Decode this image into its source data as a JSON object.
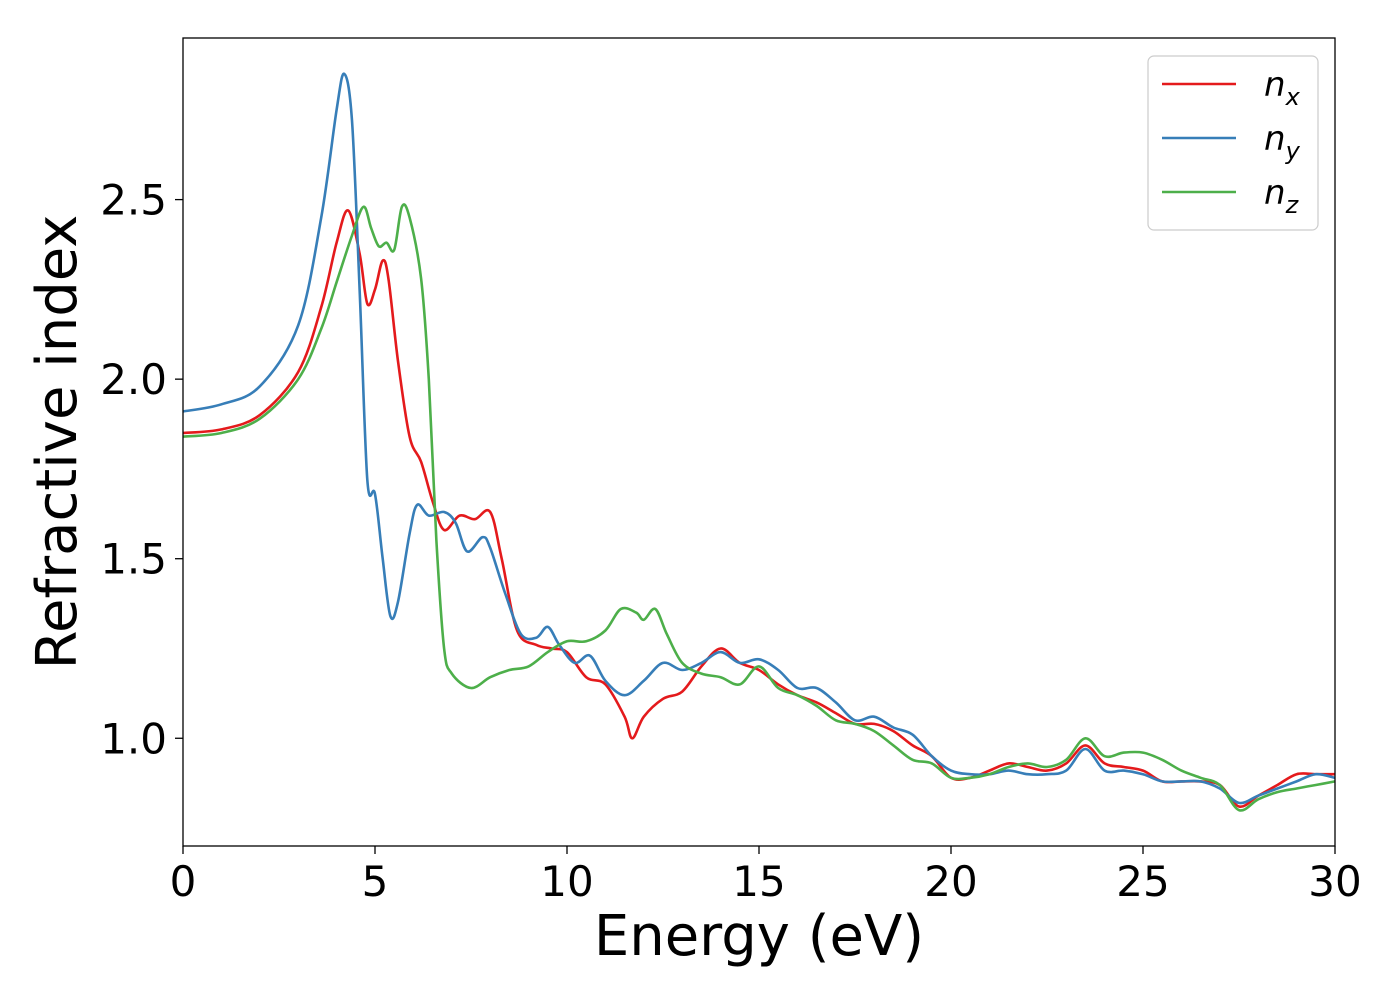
{
  "chart_data": {
    "type": "line",
    "title": "",
    "xlabel": "Energy (eV)",
    "ylabel": "Refractive index",
    "xlim": [
      0,
      30
    ],
    "ylim": [
      0.7,
      2.95
    ],
    "xticks": [
      0,
      5,
      10,
      15,
      20,
      25,
      30
    ],
    "xtick_labels": [
      "0",
      "5",
      "10",
      "15",
      "20",
      "25",
      "30"
    ],
    "yticks": [
      1.0,
      1.5,
      2.0,
      2.5
    ],
    "ytick_labels": [
      "1.0",
      "1.5",
      "2.0",
      "2.5"
    ],
    "grid": false,
    "legend_position": "top-right",
    "series": [
      {
        "name": "n",
        "subscript": "x",
        "color": "#e41a1c",
        "points": [
          [
            0,
            1.85
          ],
          [
            1,
            1.86
          ],
          [
            2,
            1.9
          ],
          [
            3,
            2.02
          ],
          [
            3.6,
            2.2
          ],
          [
            4,
            2.38
          ],
          [
            4.3,
            2.47
          ],
          [
            4.6,
            2.35
          ],
          [
            4.8,
            2.21
          ],
          [
            5,
            2.25
          ],
          [
            5.2,
            2.33
          ],
          [
            5.35,
            2.28
          ],
          [
            5.6,
            2.05
          ],
          [
            5.9,
            1.84
          ],
          [
            6.2,
            1.77
          ],
          [
            6.5,
            1.66
          ],
          [
            6.8,
            1.58
          ],
          [
            7.2,
            1.62
          ],
          [
            7.6,
            1.61
          ],
          [
            8,
            1.63
          ],
          [
            8.3,
            1.5
          ],
          [
            8.7,
            1.3
          ],
          [
            9.2,
            1.26
          ],
          [
            9.6,
            1.25
          ],
          [
            10,
            1.24
          ],
          [
            10.5,
            1.17
          ],
          [
            11,
            1.15
          ],
          [
            11.5,
            1.06
          ],
          [
            11.7,
            1.0
          ],
          [
            12,
            1.06
          ],
          [
            12.5,
            1.11
          ],
          [
            13,
            1.13
          ],
          [
            13.5,
            1.2
          ],
          [
            14,
            1.25
          ],
          [
            14.5,
            1.21
          ],
          [
            15,
            1.19
          ],
          [
            15.5,
            1.15
          ],
          [
            16,
            1.12
          ],
          [
            16.5,
            1.1
          ],
          [
            17,
            1.07
          ],
          [
            17.5,
            1.04
          ],
          [
            18,
            1.04
          ],
          [
            18.5,
            1.02
          ],
          [
            19,
            0.98
          ],
          [
            19.5,
            0.95
          ],
          [
            20,
            0.89
          ],
          [
            20.5,
            0.89
          ],
          [
            21,
            0.91
          ],
          [
            21.5,
            0.93
          ],
          [
            22,
            0.92
          ],
          [
            22.5,
            0.91
          ],
          [
            23,
            0.93
          ],
          [
            23.5,
            0.98
          ],
          [
            24,
            0.93
          ],
          [
            24.5,
            0.92
          ],
          [
            25,
            0.91
          ],
          [
            25.5,
            0.88
          ],
          [
            26,
            0.88
          ],
          [
            26.5,
            0.88
          ],
          [
            27,
            0.87
          ],
          [
            27.5,
            0.81
          ],
          [
            28,
            0.84
          ],
          [
            28.5,
            0.87
          ],
          [
            29,
            0.9
          ],
          [
            29.5,
            0.9
          ],
          [
            30,
            0.9
          ]
        ]
      },
      {
        "name": "n",
        "subscript": "y",
        "color": "#377eb8",
        "points": [
          [
            0,
            1.91
          ],
          [
            1,
            1.93
          ],
          [
            2,
            1.98
          ],
          [
            3,
            2.15
          ],
          [
            3.6,
            2.45
          ],
          [
            4,
            2.75
          ],
          [
            4.2,
            2.85
          ],
          [
            4.4,
            2.72
          ],
          [
            4.6,
            2.25
          ],
          [
            4.8,
            1.72
          ],
          [
            5,
            1.68
          ],
          [
            5.2,
            1.5
          ],
          [
            5.4,
            1.34
          ],
          [
            5.6,
            1.38
          ],
          [
            5.9,
            1.57
          ],
          [
            6.1,
            1.65
          ],
          [
            6.4,
            1.62
          ],
          [
            6.8,
            1.63
          ],
          [
            7.1,
            1.6
          ],
          [
            7.4,
            1.52
          ],
          [
            7.8,
            1.56
          ],
          [
            8,
            1.53
          ],
          [
            8.4,
            1.4
          ],
          [
            8.8,
            1.29
          ],
          [
            9.2,
            1.28
          ],
          [
            9.5,
            1.31
          ],
          [
            9.8,
            1.26
          ],
          [
            10.2,
            1.21
          ],
          [
            10.6,
            1.23
          ],
          [
            11,
            1.16
          ],
          [
            11.5,
            1.12
          ],
          [
            12,
            1.16
          ],
          [
            12.5,
            1.21
          ],
          [
            13,
            1.19
          ],
          [
            13.5,
            1.21
          ],
          [
            14,
            1.24
          ],
          [
            14.5,
            1.21
          ],
          [
            15,
            1.22
          ],
          [
            15.5,
            1.19
          ],
          [
            16,
            1.14
          ],
          [
            16.5,
            1.14
          ],
          [
            17,
            1.1
          ],
          [
            17.5,
            1.05
          ],
          [
            18,
            1.06
          ],
          [
            18.5,
            1.03
          ],
          [
            19,
            1.01
          ],
          [
            19.5,
            0.95
          ],
          [
            20,
            0.91
          ],
          [
            20.5,
            0.9
          ],
          [
            21,
            0.9
          ],
          [
            21.5,
            0.91
          ],
          [
            22,
            0.9
          ],
          [
            22.5,
            0.9
          ],
          [
            23,
            0.91
          ],
          [
            23.5,
            0.97
          ],
          [
            24,
            0.91
          ],
          [
            24.5,
            0.91
          ],
          [
            25,
            0.9
          ],
          [
            25.5,
            0.88
          ],
          [
            26,
            0.88
          ],
          [
            26.5,
            0.88
          ],
          [
            27,
            0.86
          ],
          [
            27.5,
            0.82
          ],
          [
            28,
            0.84
          ],
          [
            28.5,
            0.86
          ],
          [
            29,
            0.88
          ],
          [
            29.5,
            0.9
          ],
          [
            30,
            0.89
          ]
        ]
      },
      {
        "name": "n",
        "subscript": "z",
        "color": "#4daf4a",
        "points": [
          [
            0,
            1.84
          ],
          [
            1,
            1.85
          ],
          [
            2,
            1.89
          ],
          [
            3,
            2.0
          ],
          [
            3.6,
            2.14
          ],
          [
            4,
            2.27
          ],
          [
            4.4,
            2.4
          ],
          [
            4.7,
            2.48
          ],
          [
            4.9,
            2.42
          ],
          [
            5.1,
            2.37
          ],
          [
            5.3,
            2.38
          ],
          [
            5.5,
            2.36
          ],
          [
            5.7,
            2.48
          ],
          [
            5.9,
            2.45
          ],
          [
            6.2,
            2.28
          ],
          [
            6.4,
            2.0
          ],
          [
            6.6,
            1.55
          ],
          [
            6.8,
            1.25
          ],
          [
            7,
            1.18
          ],
          [
            7.5,
            1.14
          ],
          [
            8,
            1.17
          ],
          [
            8.5,
            1.19
          ],
          [
            9,
            1.2
          ],
          [
            9.5,
            1.24
          ],
          [
            10,
            1.27
          ],
          [
            10.5,
            1.27
          ],
          [
            11,
            1.3
          ],
          [
            11.4,
            1.36
          ],
          [
            11.8,
            1.35
          ],
          [
            12,
            1.33
          ],
          [
            12.3,
            1.36
          ],
          [
            12.6,
            1.29
          ],
          [
            13,
            1.21
          ],
          [
            13.5,
            1.18
          ],
          [
            14,
            1.17
          ],
          [
            14.5,
            1.15
          ],
          [
            15,
            1.2
          ],
          [
            15.5,
            1.14
          ],
          [
            16,
            1.12
          ],
          [
            16.5,
            1.09
          ],
          [
            17,
            1.05
          ],
          [
            17.5,
            1.04
          ],
          [
            18,
            1.02
          ],
          [
            18.5,
            0.98
          ],
          [
            19,
            0.94
          ],
          [
            19.5,
            0.93
          ],
          [
            20,
            0.89
          ],
          [
            20.5,
            0.89
          ],
          [
            21,
            0.9
          ],
          [
            21.5,
            0.92
          ],
          [
            22,
            0.93
          ],
          [
            22.5,
            0.92
          ],
          [
            23,
            0.94
          ],
          [
            23.5,
            1.0
          ],
          [
            24,
            0.95
          ],
          [
            24.5,
            0.96
          ],
          [
            25,
            0.96
          ],
          [
            25.5,
            0.94
          ],
          [
            26,
            0.91
          ],
          [
            26.5,
            0.89
          ],
          [
            27,
            0.87
          ],
          [
            27.5,
            0.8
          ],
          [
            28,
            0.83
          ],
          [
            28.5,
            0.85
          ],
          [
            29,
            0.86
          ],
          [
            29.5,
            0.87
          ],
          [
            30,
            0.88
          ]
        ]
      }
    ]
  }
}
